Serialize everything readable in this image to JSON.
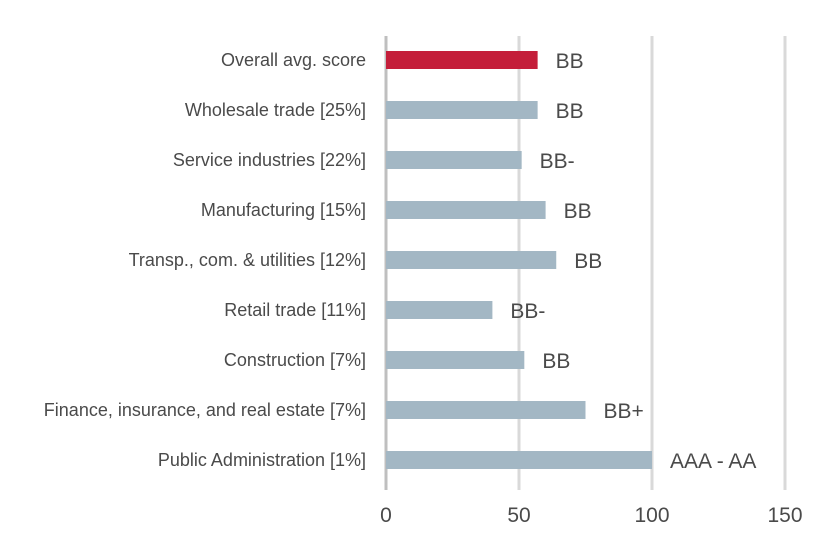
{
  "chart_data": {
    "type": "bar",
    "orientation": "horizontal",
    "categories": [
      "Overall avg. score",
      "Wholesale trade [25%]",
      "Service industries [22%]",
      "Manufacturing [15%]",
      "Transp., com. & utilities [12%]",
      "Retail trade [11%]",
      "Construction [7%]",
      "Finance, insurance, and real estate [7%]",
      "Public Administration [1%]"
    ],
    "values": [
      57,
      57,
      51,
      60,
      64,
      40,
      52,
      75,
      100
    ],
    "data_labels": [
      "BB",
      "BB",
      "BB-",
      "BB",
      "BB",
      "BB-",
      "BB",
      "BB+",
      "AAA - AA"
    ],
    "highlight_index": 0,
    "colors": {
      "highlight": "#c41e3a",
      "bar": "#a3b7c4",
      "grid": "#d9d9d9",
      "axis": "#bfbfbf",
      "text": "#4a4a4a"
    },
    "xlim": [
      0,
      150
    ],
    "xticks": [
      0,
      50,
      100,
      150
    ],
    "grid": true,
    "legend": "none",
    "title": "",
    "xlabel": "",
    "ylabel": ""
  }
}
